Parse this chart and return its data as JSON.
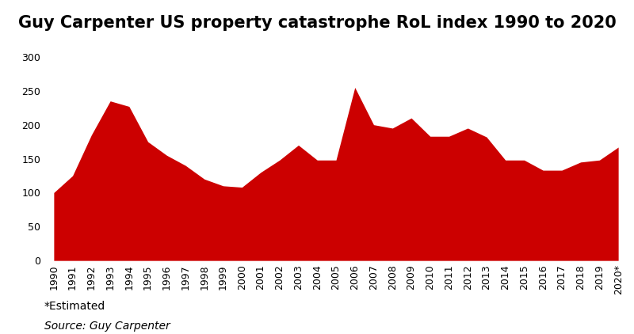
{
  "years": [
    "1990",
    "1991",
    "1992",
    "1993",
    "1994",
    "1995",
    "1996",
    "1997",
    "1998",
    "1999",
    "2000",
    "2001",
    "2002",
    "2003",
    "2004",
    "2005",
    "2006",
    "2007",
    "2008",
    "2009",
    "2010",
    "2011",
    "2012",
    "2013",
    "2014",
    "2015",
    "2016",
    "2017",
    "2018",
    "2019",
    "2020*"
  ],
  "values": [
    100,
    125,
    185,
    235,
    227,
    175,
    155,
    140,
    120,
    110,
    108,
    130,
    148,
    170,
    148,
    148,
    255,
    200,
    195,
    210,
    183,
    183,
    195,
    182,
    148,
    148,
    133,
    133,
    145,
    148,
    167
  ],
  "fill_color": "#cc0000",
  "line_color": "#cc0000",
  "background_color": "#ffffff",
  "title": "Guy Carpenter US property catastrophe RoL index 1990 to 2020",
  "title_fontsize": 15,
  "title_fontweight": "bold",
  "yticks": [
    0,
    50,
    100,
    150,
    200,
    250,
    300
  ],
  "ylim": [
    0,
    310
  ],
  "annotation1": "*Estimated",
  "annotation2": "Source: Guy Carpenter",
  "annotation_fontsize": 10,
  "tick_fontsize": 9
}
